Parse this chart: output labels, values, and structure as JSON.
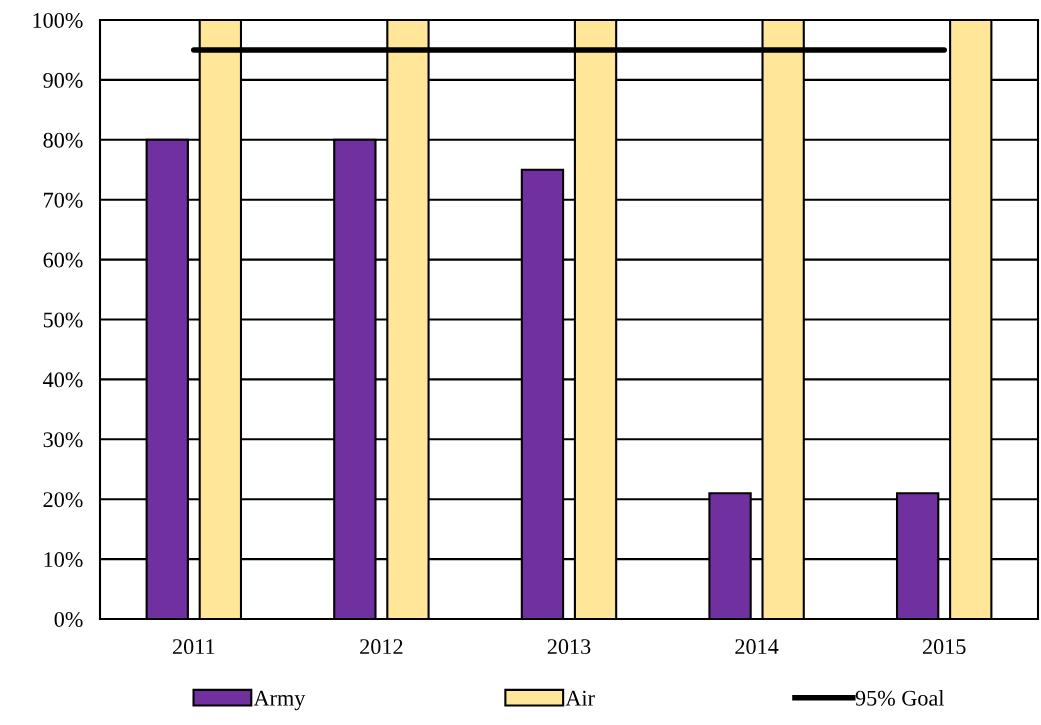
{
  "chart_data": {
    "type": "bar",
    "categories": [
      "2011",
      "2012",
      "2013",
      "2014",
      "2015"
    ],
    "series": [
      {
        "name": "Army",
        "color": "#7030a0",
        "values": [
          80,
          80,
          75,
          21,
          21
        ]
      },
      {
        "name": "Air",
        "color": "#ffe699",
        "values": [
          100,
          100,
          100,
          100,
          100
        ]
      },
      {
        "name": "95% Goal",
        "type": "line",
        "color": "#000000",
        "values": [
          95,
          95,
          95,
          95,
          95
        ]
      }
    ],
    "ylim": [
      0,
      100
    ],
    "yticks": [
      {
        "value": 0,
        "label": "0%"
      },
      {
        "value": 10,
        "label": "10%"
      },
      {
        "value": 20,
        "label": "20%"
      },
      {
        "value": 30,
        "label": "30%"
      },
      {
        "value": 40,
        "label": "40%"
      },
      {
        "value": 50,
        "label": "50%"
      },
      {
        "value": 60,
        "label": "60%"
      },
      {
        "value": 70,
        "label": "70%"
      },
      {
        "value": 80,
        "label": "80%"
      },
      {
        "value": 90,
        "label": "90%"
      },
      {
        "value": 100,
        "label": "100%"
      }
    ],
    "grid": "y",
    "legend": "bottom"
  }
}
